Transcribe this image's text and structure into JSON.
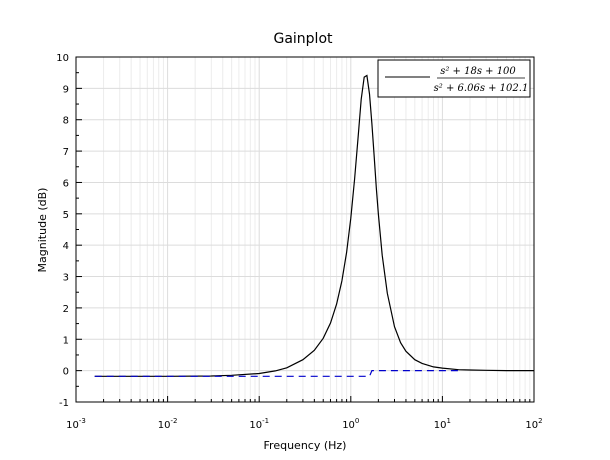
{
  "chart_data": {
    "type": "line",
    "title": "Gainplot",
    "xlabel": "Frequency (Hz)",
    "ylabel": "Magnitude (dB)",
    "xscale": "log",
    "xlim": [
      0.001,
      100
    ],
    "ylim": [
      -1,
      10
    ],
    "grid": true,
    "legend_position": "top-right",
    "x_ticks": [
      {
        "base": "10",
        "exp": "-3"
      },
      {
        "base": "10",
        "exp": "-2"
      },
      {
        "base": "10",
        "exp": "-1"
      },
      {
        "base": "10",
        "exp": "0"
      },
      {
        "base": "10",
        "exp": "1"
      },
      {
        "base": "10",
        "exp": "2"
      }
    ],
    "y_ticks": [
      "-1",
      "0",
      "1",
      "2",
      "3",
      "4",
      "5",
      "6",
      "7",
      "8",
      "9",
      "10"
    ],
    "series": [
      {
        "name": "s² + 18s + 100 / s² + 6.06s + 102.1",
        "legend": {
          "num": "s² + 18s + 100",
          "den": "s² + 6.06s + 102.1"
        },
        "color": "#000000",
        "style": "solid",
        "x": [
          0.0016,
          0.01,
          0.03,
          0.05,
          0.1,
          0.15,
          0.2,
          0.3,
          0.4,
          0.5,
          0.6,
          0.7,
          0.8,
          0.9,
          1.0,
          1.1,
          1.2,
          1.3,
          1.4,
          1.5,
          1.6,
          1.7,
          1.8,
          1.9,
          2.0,
          2.2,
          2.5,
          3.0,
          3.5,
          4.0,
          5.0,
          6.0,
          8.0,
          10,
          15,
          20,
          30,
          50,
          100
        ],
        "y": [
          -0.18,
          -0.18,
          -0.17,
          -0.15,
          -0.09,
          -0.01,
          0.09,
          0.35,
          0.65,
          1.03,
          1.52,
          2.12,
          2.86,
          3.77,
          4.86,
          6.11,
          7.44,
          8.65,
          9.36,
          9.41,
          8.82,
          7.87,
          6.82,
          5.83,
          4.98,
          3.68,
          2.47,
          1.4,
          0.89,
          0.62,
          0.35,
          0.23,
          0.12,
          0.08,
          0.03,
          0.02,
          0.01,
          0.0,
          0.0
        ]
      },
      {
        "name": "",
        "color": "#0000cc",
        "style": "dashed",
        "x": [
          0.0016,
          1.6,
          1.6,
          1.7,
          15
        ],
        "y": [
          -0.18,
          -0.18,
          -0.18,
          0.0,
          0.0
        ]
      }
    ]
  }
}
